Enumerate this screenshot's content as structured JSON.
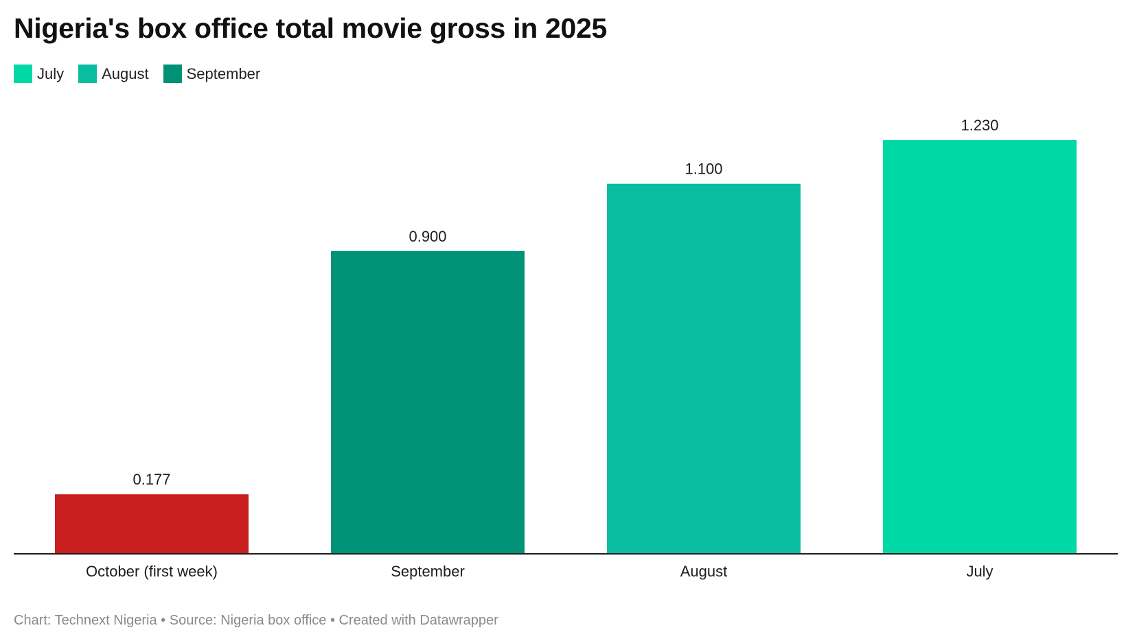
{
  "title": "Nigeria's box office total movie gross in 2025",
  "legend": [
    {
      "label": "July",
      "color": "#00d9a6"
    },
    {
      "label": "August",
      "color": "#0abca0"
    },
    {
      "label": "September",
      "color": "#009276"
    }
  ],
  "footer": "Chart: Technext Nigeria • Source: Nigeria box office • Created with Datawrapper",
  "chart_data": {
    "type": "bar",
    "categories": [
      "October (first week)",
      "September",
      "August",
      "July"
    ],
    "values": [
      0.177,
      0.9,
      1.1,
      1.23
    ],
    "value_labels": [
      "0.177",
      "0.900",
      "1.100",
      "1.230"
    ],
    "colors": [
      "#c81e1e",
      "#009276",
      "#0abca0",
      "#00d9a6"
    ],
    "title": "Nigeria's box office total movie gross in 2025",
    "xlabel": "",
    "ylabel": "",
    "ylim": [
      0,
      1.23
    ],
    "grid": false,
    "legend_position": "top-left"
  }
}
